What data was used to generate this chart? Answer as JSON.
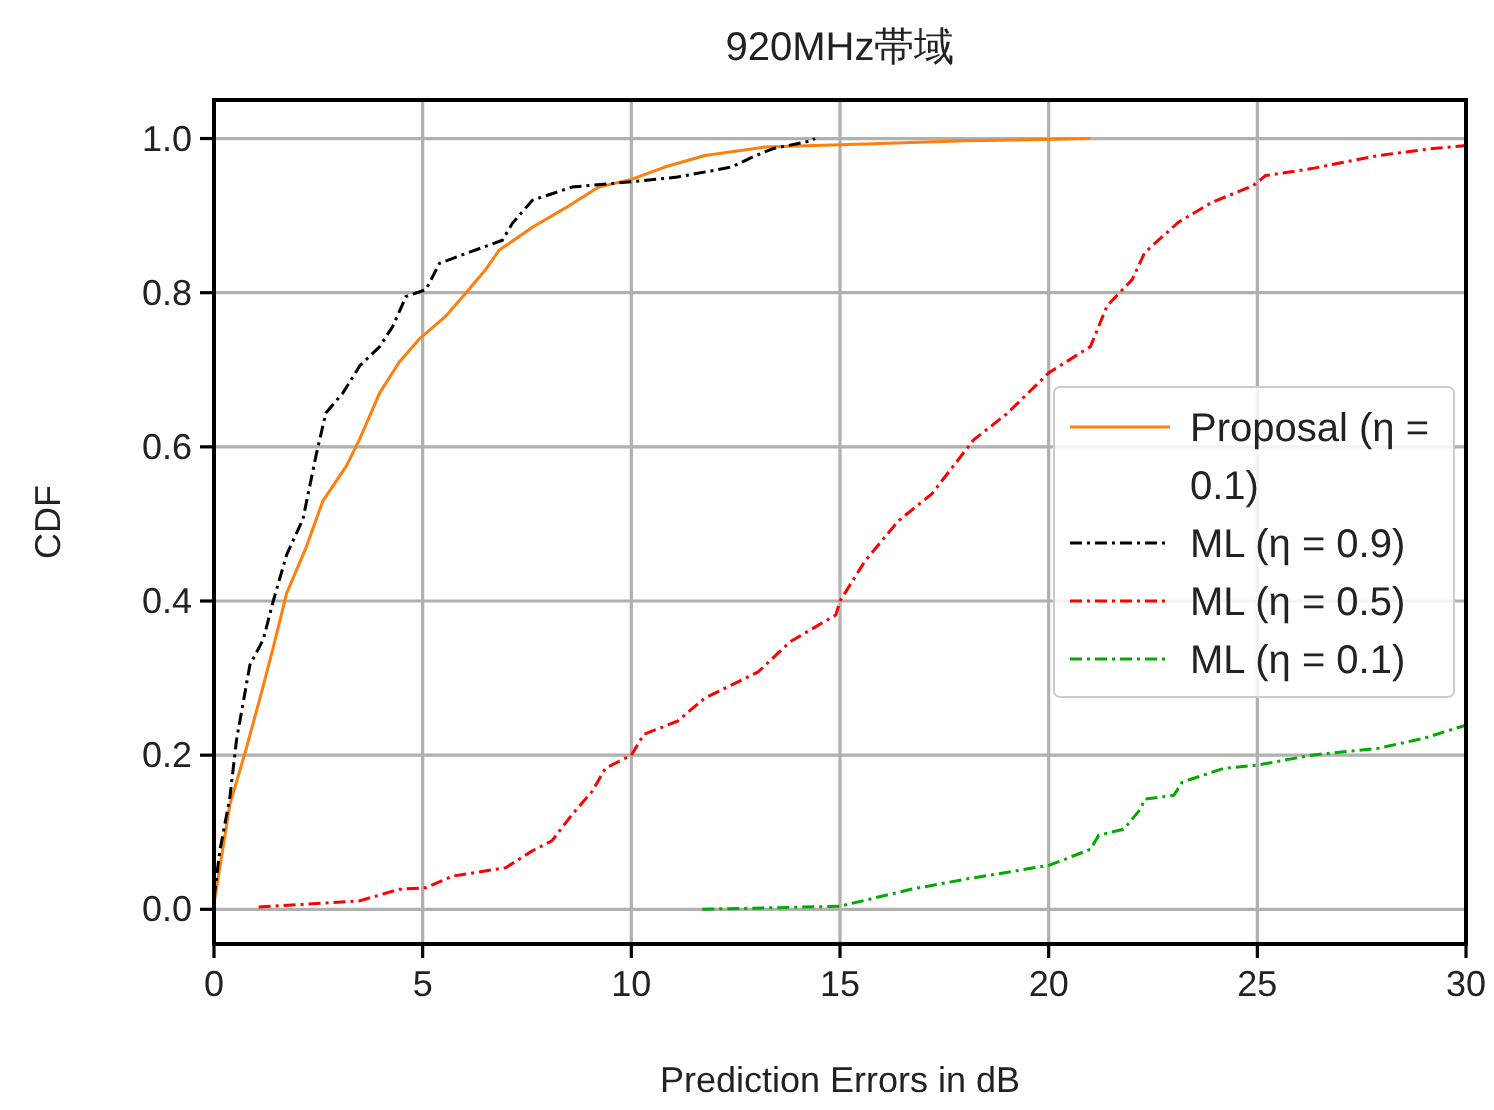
{
  "chart_data": {
    "type": "line",
    "title": "920MHz帯域",
    "xlabel": "Prediction Errors in dB",
    "ylabel": "CDF",
    "xlim": [
      0,
      30
    ],
    "ylim": [
      -0.045,
      1.05
    ],
    "xticks": [
      0,
      5,
      10,
      15,
      20,
      25,
      30
    ],
    "yticks": [
      {
        "value": 0,
        "label": "0.0"
      },
      {
        "value": 0.2,
        "label": "0.2"
      },
      {
        "value": 0.4,
        "label": "0.4"
      },
      {
        "value": 0.6,
        "label": "0.6"
      },
      {
        "value": 0.8,
        "label": "0.8"
      },
      {
        "value": 1,
        "label": "1.0"
      }
    ],
    "grid": true,
    "legend": "right",
    "marker": "none",
    "series": [
      {
        "name": "Proposal (η = 0.1)",
        "color": "#ff7f0e",
        "line_style": "solid",
        "x": [
          0,
          0.38,
          0.78,
          1.18,
          1.42,
          1.74,
          2.21,
          2.61,
          3.17,
          3.49,
          3.97,
          4.44,
          4.92,
          5.56,
          6.04,
          6.51,
          6.83,
          7.63,
          8.42,
          9.22,
          10,
          10.8,
          11.76,
          13.2,
          15.6,
          18,
          21
        ],
        "values": [
          0.007,
          0.136,
          0.21,
          0.29,
          0.34,
          0.41,
          0.47,
          0.53,
          0.575,
          0.61,
          0.67,
          0.71,
          0.74,
          0.77,
          0.8,
          0.83,
          0.855,
          0.885,
          0.91,
          0.937,
          0.947,
          0.963,
          0.978,
          0.989,
          0.993,
          0.997,
          1.0
        ]
      },
      {
        "name": "ML (η = 0.9)",
        "color": "#000000",
        "line_style": "dashdot",
        "x": [
          0,
          0.14,
          0.38,
          0.54,
          0.86,
          1.18,
          1.42,
          1.74,
          2.13,
          2.45,
          2.68,
          3.09,
          3.49,
          3.97,
          4.28,
          4.6,
          5.08,
          5.4,
          6.04,
          6.91,
          7.15,
          7.63,
          8.58,
          10,
          11.1,
          12.4,
          12.9,
          13.4,
          14.3,
          14.4
        ],
        "values": [
          0.015,
          0.076,
          0.145,
          0.22,
          0.317,
          0.35,
          0.4,
          0.46,
          0.506,
          0.59,
          0.644,
          0.67,
          0.705,
          0.73,
          0.756,
          0.795,
          0.804,
          0.838,
          0.851,
          0.868,
          0.89,
          0.92,
          0.937,
          0.944,
          0.95,
          0.963,
          0.976,
          0.987,
          0.997,
          1.0
        ]
      },
      {
        "name": "ML (η = 0.5)",
        "color": "#ff0000",
        "line_style": "dashdot",
        "x": [
          1.07,
          3.49,
          4.44,
          5.08,
          5.71,
          6.99,
          7.63,
          8.1,
          8.58,
          9.06,
          9.38,
          10,
          10.3,
          11.1,
          11.76,
          13.04,
          13.8,
          14.9,
          15,
          15.6,
          16.4,
          17.2,
          18.2,
          19,
          20,
          21,
          21.4,
          22,
          22.3,
          23.1,
          23.9,
          24.9,
          25.2,
          26.3,
          27.9,
          29.2,
          30
        ],
        "values": [
          0.003,
          0.011,
          0.026,
          0.028,
          0.043,
          0.054,
          0.076,
          0.089,
          0.123,
          0.153,
          0.183,
          0.2,
          0.227,
          0.244,
          0.274,
          0.308,
          0.347,
          0.382,
          0.4,
          0.452,
          0.504,
          0.539,
          0.609,
          0.643,
          0.696,
          0.73,
          0.783,
          0.817,
          0.852,
          0.891,
          0.917,
          0.939,
          0.952,
          0.961,
          0.978,
          0.987,
          0.991
        ]
      },
      {
        "name": "ML (η = 0.1)",
        "color": "#00aa00",
        "line_style": "dashdot",
        "x": [
          11.7,
          15,
          16.7,
          18,
          20,
          20.4,
          21,
          21.2,
          21.8,
          22.2,
          22.3,
          23,
          23.2,
          24.2,
          25,
          26.3,
          27.9,
          29,
          30
        ],
        "values": [
          0.0,
          0.004,
          0.026,
          0.039,
          0.057,
          0.065,
          0.078,
          0.096,
          0.104,
          0.13,
          0.143,
          0.148,
          0.165,
          0.183,
          0.187,
          0.2,
          0.209,
          0.222,
          0.239
        ]
      }
    ]
  }
}
